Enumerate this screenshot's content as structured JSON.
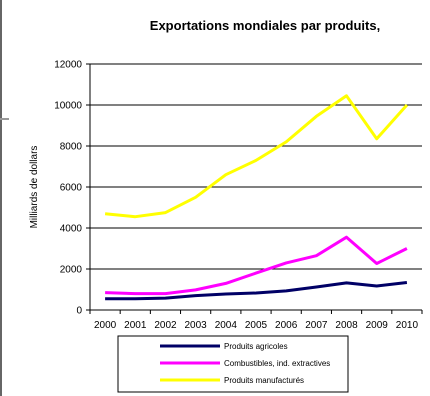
{
  "chart_data": {
    "type": "line",
    "title": "Exportations mondiales par produits,",
    "xlabel": "",
    "ylabel": "Milliards de dollars",
    "x": [
      "2000",
      "2001",
      "2002",
      "2003",
      "2004",
      "2005",
      "2006",
      "2007",
      "2008",
      "2009",
      "2010"
    ],
    "ylim": [
      0,
      12000
    ],
    "yticks": [
      0,
      2000,
      4000,
      6000,
      8000,
      10000,
      12000
    ],
    "grid": "horizontal",
    "legend_placement": "bottom",
    "series": [
      {
        "name": "Produits agricoles",
        "color": "#000066",
        "values": [
          550,
          550,
          580,
          700,
          780,
          830,
          930,
          1120,
          1320,
          1170,
          1340
        ]
      },
      {
        "name": "Combustibles, ind. extractives",
        "color": "#ff00ff",
        "values": [
          850,
          800,
          800,
          980,
          1300,
          1800,
          2300,
          2650,
          3550,
          2270,
          3000
        ]
      },
      {
        "name": "Produits manufacturés",
        "color": "#ffff00",
        "values": [
          4700,
          4550,
          4750,
          5500,
          6600,
          7300,
          8200,
          9450,
          10450,
          8350,
          10000
        ]
      }
    ]
  }
}
